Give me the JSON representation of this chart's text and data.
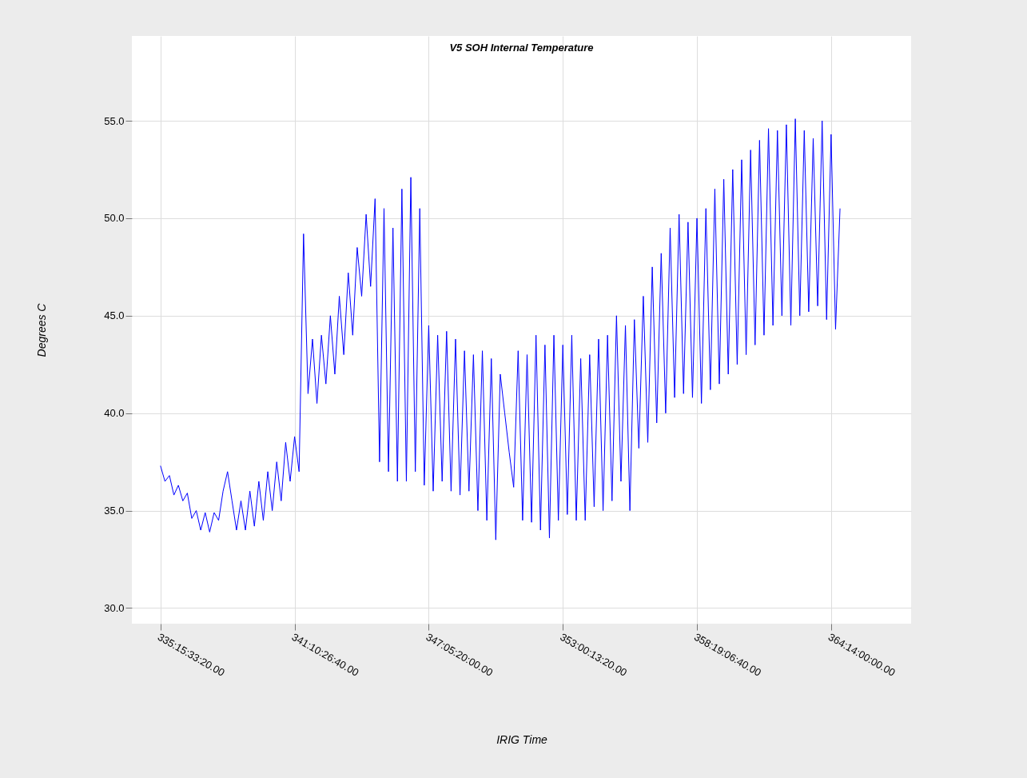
{
  "chart_data": {
    "type": "line",
    "title": "V5 SOH Internal Temperature",
    "xlabel": "IRIG Time",
    "ylabel": "Degrees C",
    "color": "#0000ff",
    "line_style": "solid",
    "grid": true,
    "ylim": [
      29.2,
      59.35
    ],
    "yticks": [
      {
        "value": 30,
        "label": "30.0"
      },
      {
        "value": 35,
        "label": "35.0"
      },
      {
        "value": 40,
        "label": "40.0"
      },
      {
        "value": 45,
        "label": "45.0"
      },
      {
        "value": 50,
        "label": "50.0"
      },
      {
        "value": 55,
        "label": "55.0"
      }
    ],
    "categories": [
      "335:15:33:20.00",
      null,
      null,
      null,
      null,
      null,
      null,
      null,
      null,
      null,
      null,
      null,
      null,
      null,
      null,
      null,
      null,
      null,
      null,
      null,
      null,
      null,
      null,
      null,
      null,
      null,
      null,
      null,
      null,
      null,
      "341:10:26:40.00",
      null,
      null,
      null,
      null,
      null,
      null,
      null,
      null,
      null,
      null,
      null,
      null,
      null,
      null,
      null,
      null,
      null,
      null,
      null,
      null,
      null,
      null,
      null,
      null,
      null,
      null,
      null,
      null,
      null,
      "347:05:20:00.00",
      null,
      null,
      null,
      null,
      null,
      null,
      null,
      null,
      null,
      null,
      null,
      null,
      null,
      null,
      null,
      null,
      null,
      null,
      null,
      null,
      null,
      null,
      null,
      null,
      null,
      null,
      null,
      null,
      null,
      "353:00:13:20.00",
      null,
      null,
      null,
      null,
      null,
      null,
      null,
      null,
      null,
      null,
      null,
      null,
      null,
      null,
      null,
      null,
      null,
      null,
      null,
      null,
      null,
      null,
      null,
      null,
      null,
      null,
      null,
      null,
      null,
      "358:19:06:40.00",
      null,
      null,
      null,
      null,
      null,
      null,
      null,
      null,
      null,
      null,
      null,
      null,
      null,
      null,
      null,
      null,
      null,
      null,
      null,
      null,
      null,
      null,
      null,
      null,
      null,
      null,
      null,
      null,
      null,
      "364:14:00:00.00",
      null,
      null
    ],
    "values": [
      37.3,
      36.5,
      36.8,
      35.8,
      36.3,
      35.5,
      35.9,
      34.6,
      35.0,
      34.0,
      34.9,
      33.9,
      34.9,
      34.5,
      36.0,
      37.0,
      35.5,
      34.0,
      35.5,
      34.0,
      36.0,
      34.2,
      36.5,
      34.5,
      37.0,
      35.0,
      37.5,
      35.5,
      38.5,
      36.5,
      38.8,
      37.0,
      49.2,
      41.0,
      43.8,
      40.5,
      44.0,
      41.5,
      45.0,
      42.0,
      46.0,
      43.0,
      47.2,
      44.0,
      48.5,
      46.0,
      50.2,
      46.5,
      51.0,
      37.5,
      50.5,
      37.0,
      49.5,
      36.5,
      51.5,
      36.5,
      52.1,
      37.0,
      50.5,
      36.3,
      44.5,
      36.0,
      44.0,
      36.5,
      44.2,
      36.0,
      43.8,
      35.8,
      43.2,
      36.0,
      43.0,
      35.0,
      43.2,
      34.5,
      42.8,
      33.5,
      42.0,
      40.0,
      38.0,
      36.2,
      43.2,
      34.5,
      43.0,
      34.4,
      44.0,
      34.0,
      43.5,
      33.6,
      44.0,
      34.5,
      43.5,
      34.8,
      44.0,
      34.5,
      42.8,
      34.5,
      43.0,
      35.2,
      43.8,
      35.0,
      44.0,
      35.5,
      45.0,
      36.5,
      44.5,
      35.0,
      44.8,
      38.2,
      46.0,
      38.5,
      47.5,
      39.5,
      48.2,
      40.0,
      49.5,
      40.8,
      50.2,
      41.0,
      49.8,
      40.8,
      50.0,
      40.5,
      50.5,
      41.2,
      51.5,
      41.5,
      52.0,
      42.0,
      52.5,
      42.5,
      53.0,
      43.0,
      53.5,
      43.5,
      54.0,
      44.0,
      54.6,
      44.5,
      54.5,
      45.0,
      54.8,
      44.5,
      55.1,
      45.0,
      54.5,
      45.2,
      54.1,
      45.5,
      55.0,
      44.8,
      54.3,
      44.3,
      50.5
    ]
  }
}
